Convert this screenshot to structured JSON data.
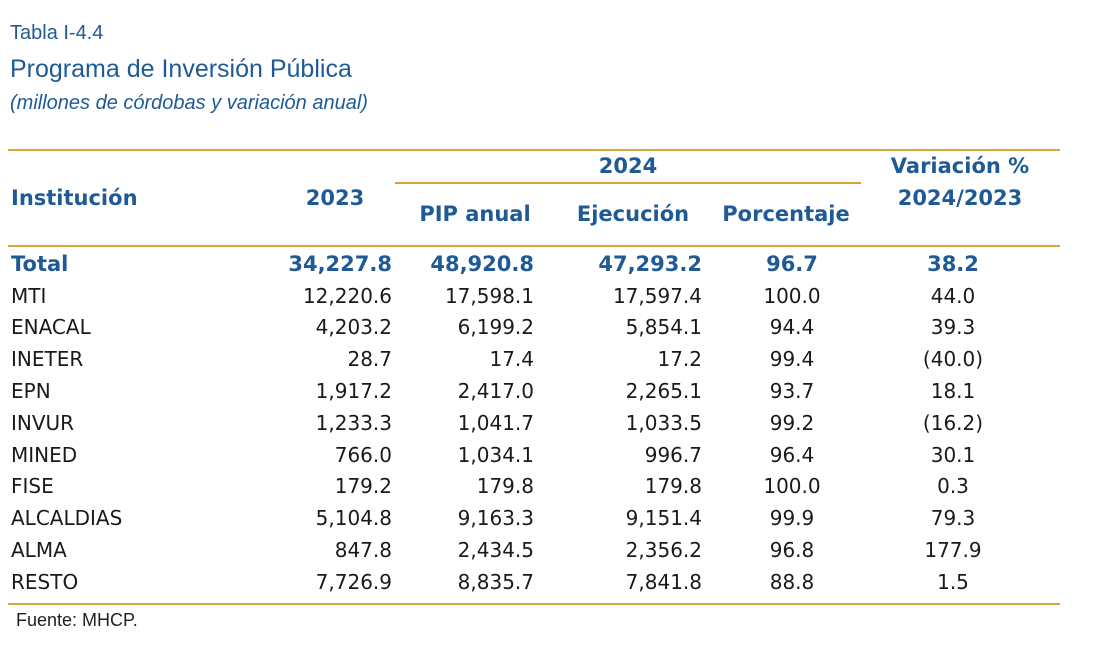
{
  "header": {
    "table_label": "Tabla I-4.4",
    "title": "Programa de Inversión Pública",
    "subtitle": "(millones de córdobas y variación anual)"
  },
  "columns": {
    "institution": "Institución",
    "year_2023": "2023",
    "year_2024": "2024",
    "pip_anual": "PIP anual",
    "ejecucion": "Ejecución",
    "porcentaje": "Porcentaje",
    "variacion_line1": "Variación %",
    "variacion_line2": "2024/2023"
  },
  "rows": [
    {
      "name": "Total",
      "v2023": "34,227.8",
      "pip": "48,920.8",
      "ejec": "47,293.2",
      "pct": "96.7",
      "var": "38.2"
    },
    {
      "name": "MTI",
      "v2023": "12,220.6",
      "pip": "17,598.1",
      "ejec": "17,597.4",
      "pct": "100.0",
      "var": "44.0"
    },
    {
      "name": "ENACAL",
      "v2023": "4,203.2",
      "pip": "6,199.2",
      "ejec": "5,854.1",
      "pct": "94.4",
      "var": "39.3"
    },
    {
      "name": "INETER",
      "v2023": "28.7",
      "pip": "17.4",
      "ejec": "17.2",
      "pct": "99.4",
      "var": "(40.0)"
    },
    {
      "name": "EPN",
      "v2023": "1,917.2",
      "pip": "2,417.0",
      "ejec": "2,265.1",
      "pct": "93.7",
      "var": "18.1"
    },
    {
      "name": "INVUR",
      "v2023": "1,233.3",
      "pip": "1,041.7",
      "ejec": "1,033.5",
      "pct": "99.2",
      "var": "(16.2)"
    },
    {
      "name": "MINED",
      "v2023": "766.0",
      "pip": "1,034.1",
      "ejec": "996.7",
      "pct": "96.4",
      "var": "30.1"
    },
    {
      "name": "FISE",
      "v2023": "179.2",
      "pip": "179.8",
      "ejec": "179.8",
      "pct": "100.0",
      "var": "0.3"
    },
    {
      "name": "ALCALDIAS",
      "v2023": "5,104.8",
      "pip": "9,163.3",
      "ejec": "9,151.4",
      "pct": "99.9",
      "var": "79.3"
    },
    {
      "name": "ALMA",
      "v2023": "847.8",
      "pip": "2,434.5",
      "ejec": "2,356.2",
      "pct": "96.8",
      "var": "177.9"
    },
    {
      "name": "RESTO",
      "v2023": "7,726.9",
      "pip": "8,835.7",
      "ejec": "7,841.8",
      "pct": "88.8",
      "var": "1.5"
    }
  ],
  "source": "Fuente: MHCP.",
  "colors": {
    "accent": "#1f5a96",
    "rule": "#d4a73b"
  }
}
